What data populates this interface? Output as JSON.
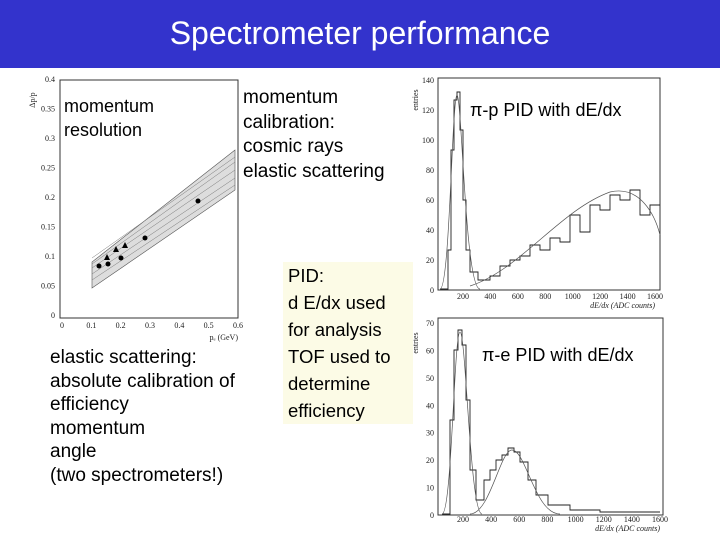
{
  "header": {
    "title": "Spectrometer performance"
  },
  "resolution_plot": {
    "y_label": "Δp/p",
    "y_ticks": [
      "0.4",
      "0.35",
      "0.3",
      "0.25",
      "0.2",
      "0.15",
      "0.1",
      "0.05",
      "0"
    ],
    "x_ticks": [
      "0",
      "0.1",
      "0.2",
      "0.3",
      "0.4",
      "0.5",
      "0.6"
    ],
    "x_label": "pₑ (GeV)"
  },
  "notes": {
    "resolution": [
      "momentum",
      "resolution"
    ],
    "calibration": [
      "momentum",
      "calibration:",
      "cosmic rays",
      "elastic scattering"
    ],
    "pid": [
      "PID:",
      "d E/dx used",
      "for analysis",
      "TOF used to",
      "determine",
      "efficiency"
    ],
    "elastic": [
      "elastic scattering:",
      "absolute calibration of",
      "efficiency",
      "momentum",
      "angle",
      "(two spectrometers!)"
    ]
  },
  "hist_pp": {
    "label": "π-p PID with dE/dx",
    "y_label": "entries",
    "y_ticks": [
      "140",
      "120",
      "100",
      "80",
      "60",
      "40",
      "20",
      "0"
    ],
    "x_ticks": [
      "200",
      "400",
      "600",
      "800",
      "1000",
      "1200",
      "1400",
      "1600"
    ],
    "x_label": "dE/dx (ADC counts)"
  },
  "hist_pe": {
    "label": "π-e PID with dE/dx",
    "y_label": "entries",
    "y_ticks": [
      "70",
      "60",
      "50",
      "40",
      "30",
      "20",
      "10",
      "0"
    ],
    "x_ticks": [
      "200",
      "400",
      "600",
      "800",
      "1000",
      "1200",
      "1400",
      "1600"
    ],
    "x_label": "dE/dx (ADC counts)"
  }
}
